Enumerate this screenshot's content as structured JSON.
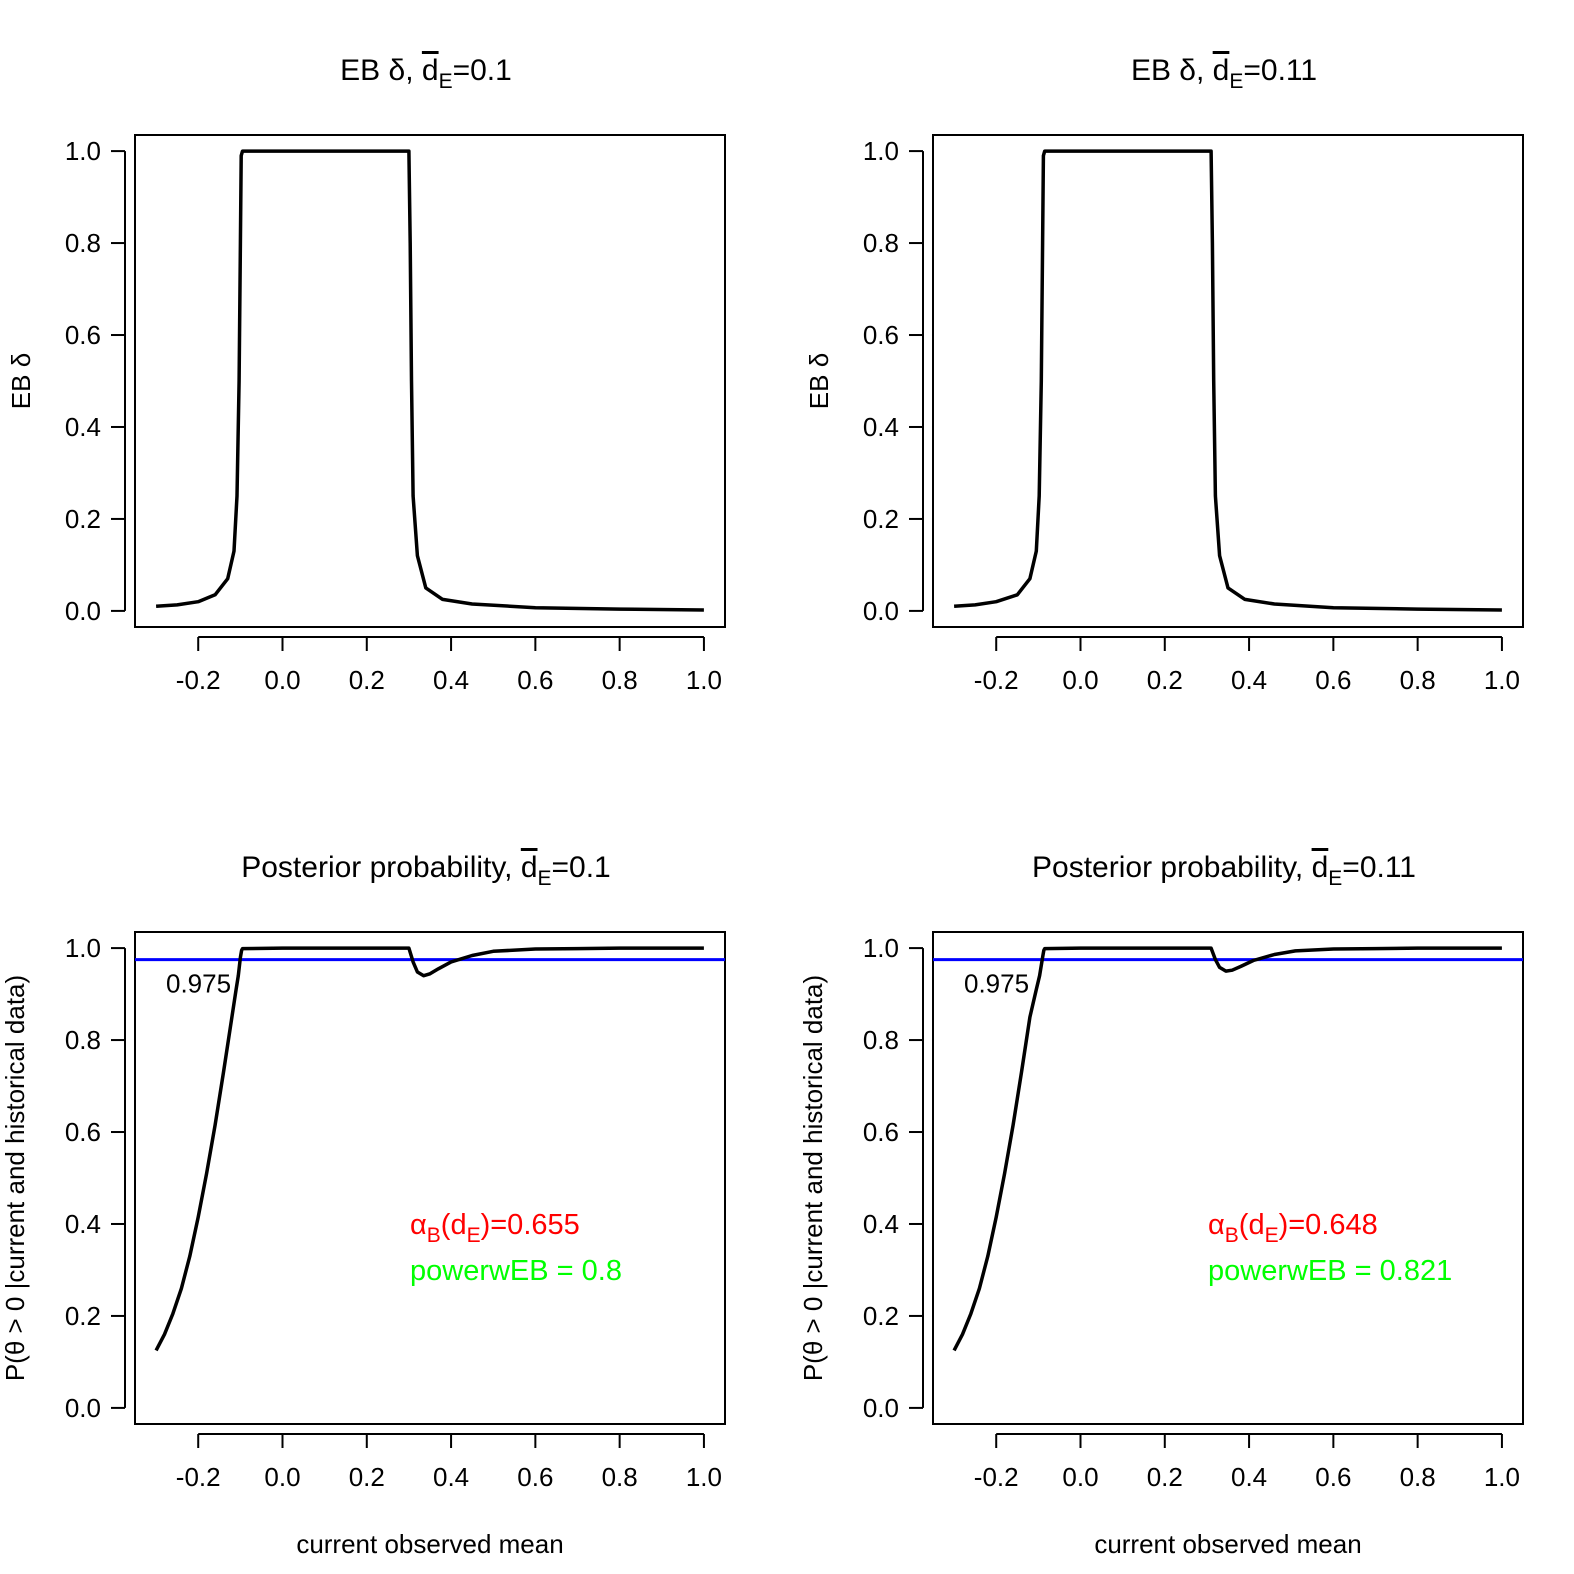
{
  "chart_data": [
    {
      "id": "panel-eb-delta-0.1",
      "type": "line",
      "title": {
        "prefix": "EB δ, ",
        "d": "d",
        "sub": "E",
        "suffix": "=0.1"
      },
      "xlabel": "",
      "ylabel": "EB δ",
      "xlim": [
        -0.35,
        1.05
      ],
      "ylim": [
        -0.035,
        1.035
      ],
      "xticks": [
        -0.2,
        0.0,
        0.2,
        0.4,
        0.6,
        0.8,
        1.0
      ],
      "xtick_labels": [
        "-0.2",
        "0.0",
        "0.2",
        "0.4",
        "0.6",
        "0.8",
        "1.0"
      ],
      "yticks": [
        0.0,
        0.2,
        0.4,
        0.6,
        0.8,
        1.0
      ],
      "ytick_labels": [
        "0.0",
        "0.2",
        "0.4",
        "0.6",
        "0.8",
        "1.0"
      ],
      "series": [
        {
          "name": "EB delta",
          "color": "#000000",
          "x": [
            -0.3,
            -0.25,
            -0.2,
            -0.16,
            -0.13,
            -0.115,
            -0.108,
            -0.103,
            -0.1,
            -0.098,
            -0.095,
            0.0,
            0.1,
            0.2,
            0.3,
            0.303,
            0.306,
            0.31,
            0.32,
            0.34,
            0.38,
            0.45,
            0.6,
            0.8,
            1.0
          ],
          "y": [
            0.01,
            0.013,
            0.02,
            0.035,
            0.07,
            0.13,
            0.25,
            0.5,
            0.8,
            0.99,
            1.0,
            1.0,
            1.0,
            1.0,
            1.0,
            0.8,
            0.5,
            0.25,
            0.12,
            0.05,
            0.025,
            0.015,
            0.007,
            0.004,
            0.002
          ]
        }
      ]
    },
    {
      "id": "panel-eb-delta-0.11",
      "type": "line",
      "title": {
        "prefix": "EB δ, ",
        "d": "d",
        "sub": "E",
        "suffix": "=0.11"
      },
      "xlabel": "",
      "ylabel": "EB δ",
      "xlim": [
        -0.35,
        1.05
      ],
      "ylim": [
        -0.035,
        1.035
      ],
      "xticks": [
        -0.2,
        0.0,
        0.2,
        0.4,
        0.6,
        0.8,
        1.0
      ],
      "xtick_labels": [
        "-0.2",
        "0.0",
        "0.2",
        "0.4",
        "0.6",
        "0.8",
        "1.0"
      ],
      "yticks": [
        0.0,
        0.2,
        0.4,
        0.6,
        0.8,
        1.0
      ],
      "ytick_labels": [
        "0.0",
        "0.2",
        "0.4",
        "0.6",
        "0.8",
        "1.0"
      ],
      "series": [
        {
          "name": "EB delta",
          "color": "#000000",
          "x": [
            -0.3,
            -0.25,
            -0.2,
            -0.15,
            -0.12,
            -0.105,
            -0.098,
            -0.093,
            -0.09,
            -0.088,
            -0.085,
            0.0,
            0.1,
            0.2,
            0.31,
            0.313,
            0.316,
            0.32,
            0.33,
            0.35,
            0.39,
            0.46,
            0.6,
            0.8,
            1.0
          ],
          "y": [
            0.01,
            0.013,
            0.02,
            0.035,
            0.07,
            0.13,
            0.25,
            0.5,
            0.8,
            0.99,
            1.0,
            1.0,
            1.0,
            1.0,
            1.0,
            0.8,
            0.5,
            0.25,
            0.12,
            0.05,
            0.025,
            0.015,
            0.007,
            0.004,
            0.002
          ]
        }
      ]
    },
    {
      "id": "panel-posterior-0.1",
      "type": "line",
      "title": {
        "prefix": "Posterior probability, ",
        "d": "d",
        "sub": "E",
        "suffix": "=0.1"
      },
      "xlabel": "current observed mean",
      "ylabel": "P(θ > 0 |current and historical data)",
      "xlim": [
        -0.35,
        1.05
      ],
      "ylim": [
        -0.035,
        1.035
      ],
      "xticks": [
        -0.2,
        0.0,
        0.2,
        0.4,
        0.6,
        0.8,
        1.0
      ],
      "xtick_labels": [
        "-0.2",
        "0.0",
        "0.2",
        "0.4",
        "0.6",
        "0.8",
        "1.0"
      ],
      "yticks": [
        0.0,
        0.2,
        0.4,
        0.6,
        0.8,
        1.0
      ],
      "ytick_labels": [
        "0.0",
        "0.2",
        "0.4",
        "0.6",
        "0.8",
        "1.0"
      ],
      "hline": {
        "y": 0.975,
        "color": "#0000ff",
        "label": "0.975"
      },
      "annotations": {
        "alpha": {
          "symbol": "α",
          "sub": "B",
          "open": "(d",
          "sub2": "E",
          "close": ")=0.655",
          "color": "#ff0000"
        },
        "power": {
          "text": "powerwEB =  0.8",
          "color": "#00ff00"
        }
      },
      "series": [
        {
          "name": "posterior probability",
          "color": "#000000",
          "x": [
            -0.3,
            -0.28,
            -0.26,
            -0.24,
            -0.22,
            -0.2,
            -0.18,
            -0.16,
            -0.14,
            -0.13,
            -0.12,
            -0.11,
            -0.105,
            -0.1,
            -0.097,
            -0.095,
            0.0,
            0.1,
            0.2,
            0.3,
            0.31,
            0.32,
            0.335,
            0.35,
            0.37,
            0.4,
            0.45,
            0.5,
            0.6,
            0.7,
            0.8,
            1.0
          ],
          "y": [
            0.125,
            0.16,
            0.205,
            0.26,
            0.33,
            0.415,
            0.51,
            0.615,
            0.73,
            0.79,
            0.85,
            0.91,
            0.94,
            0.98,
            0.995,
            0.999,
            1.0,
            1.0,
            1.0,
            1.0,
            0.97,
            0.948,
            0.94,
            0.944,
            0.955,
            0.97,
            0.984,
            0.993,
            0.998,
            0.999,
            1.0,
            1.0
          ]
        }
      ]
    },
    {
      "id": "panel-posterior-0.11",
      "type": "line",
      "title": {
        "prefix": "Posterior probability, ",
        "d": "d",
        "sub": "E",
        "suffix": "=0.11"
      },
      "xlabel": "current observed mean",
      "ylabel": "P(θ > 0 |current and historical data)",
      "xlim": [
        -0.35,
        1.05
      ],
      "ylim": [
        -0.035,
        1.035
      ],
      "xticks": [
        -0.2,
        0.0,
        0.2,
        0.4,
        0.6,
        0.8,
        1.0
      ],
      "xtick_labels": [
        "-0.2",
        "0.0",
        "0.2",
        "0.4",
        "0.6",
        "0.8",
        "1.0"
      ],
      "yticks": [
        0.0,
        0.2,
        0.4,
        0.6,
        0.8,
        1.0
      ],
      "ytick_labels": [
        "0.0",
        "0.2",
        "0.4",
        "0.6",
        "0.8",
        "1.0"
      ],
      "hline": {
        "y": 0.975,
        "color": "#0000ff",
        "label": "0.975"
      },
      "annotations": {
        "alpha": {
          "symbol": "α",
          "sub": "B",
          "open": "(d",
          "sub2": "E",
          "close": ")=0.648",
          "color": "#ff0000"
        },
        "power": {
          "text": "powerwEB =  0.821",
          "color": "#00ff00"
        }
      },
      "series": [
        {
          "name": "posterior probability",
          "color": "#000000",
          "x": [
            -0.3,
            -0.28,
            -0.26,
            -0.24,
            -0.22,
            -0.2,
            -0.18,
            -0.16,
            -0.14,
            -0.13,
            -0.12,
            -0.105,
            -0.097,
            -0.09,
            -0.087,
            -0.085,
            0.0,
            0.1,
            0.2,
            0.31,
            0.32,
            0.33,
            0.345,
            0.36,
            0.38,
            0.41,
            0.46,
            0.51,
            0.6,
            0.7,
            0.8,
            1.0
          ],
          "y": [
            0.125,
            0.16,
            0.205,
            0.26,
            0.33,
            0.415,
            0.51,
            0.615,
            0.73,
            0.79,
            0.85,
            0.91,
            0.94,
            0.98,
            0.995,
            0.999,
            1.0,
            1.0,
            1.0,
            1.0,
            0.975,
            0.958,
            0.95,
            0.952,
            0.96,
            0.973,
            0.986,
            0.994,
            0.998,
            0.999,
            1.0,
            1.0
          ]
        }
      ]
    }
  ]
}
